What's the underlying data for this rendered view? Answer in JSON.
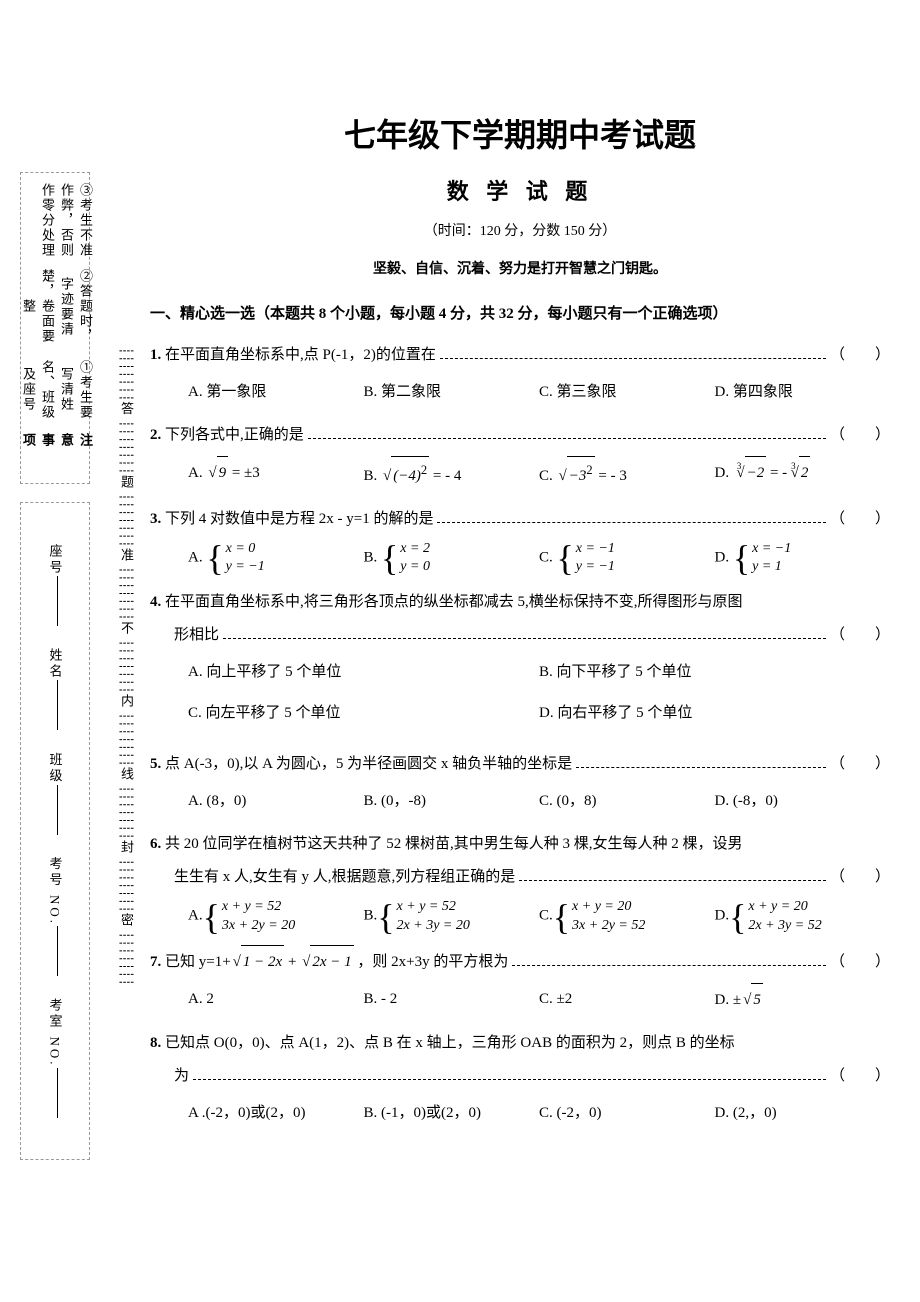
{
  "title": "七年级下学期期中考试题",
  "subtitle": "数 学 试 题",
  "meta": "（时间：120 分，分数 150 分）",
  "motto": "坚毅、自信、沉着、努力是打开智慧之门钥匙。",
  "sidebar": {
    "notice_header": "注 意 事 项",
    "notice_lines": [
      "①考生要写清姓名、班级及座号",
      "②答题时，字迹要清楚，卷面要整",
      "③考生不准作弊，否则作零分处理"
    ],
    "fill_labels": [
      "考室 NO.",
      "考号 NO.",
      "班级",
      "姓名",
      "座号"
    ],
    "strip_chars": [
      "答",
      "题",
      "准",
      "不",
      "内",
      "线",
      "封",
      "密"
    ]
  },
  "section1": {
    "head": "一、精心选一选（本题共 8 个小题，每小题 4 分，共 32 分，每小题只有一个正确选项）",
    "q1": {
      "num": "1.",
      "stem": "在平面直角坐标系中,点 P(-1，2)的位置在",
      "opts": [
        "A.  第一象限",
        "B.  第二象限",
        "C.  第三象限",
        "D.  第四象限"
      ]
    },
    "q2": {
      "num": "2.",
      "stem": "下列各式中,正确的是",
      "A_pre": "A.  ",
      "A_body": "9",
      "A_post": " = ±3",
      "B_pre": "B.  ",
      "B_body": "(−4)",
      "B_sup": "2",
      "B_post": " = - 4",
      "C_pre": "C.  ",
      "C_body": "−3",
      "C_sup": "2",
      "C_post": " = - 3",
      "D_pre": "D.  ",
      "D_idx": "3",
      "D_body1": "−2",
      "D_mid": " = -",
      "D_body2": "2"
    },
    "q3": {
      "num": "3.",
      "stem": "下列 4 对数值中是方程 2x - y=1 的解的是",
      "A_l": "A.  ",
      "A_r1": "x = 0",
      "A_r2": "y = −1",
      "B_l": "B.  ",
      "B_r1": "x = 2",
      "B_r2": "y = 0",
      "C_l": "C.  ",
      "C_r1": "x = −1",
      "C_r2": "y = −1",
      "D_l": "D.  ",
      "D_r1": "x = −1",
      "D_r2": "y = 1"
    },
    "q4": {
      "num": "4.",
      "stem1": "在平面直角坐标系中,将三角形各顶点的纵坐标都减去 5,横坐标保持不变,所得图形与原图",
      "stem2": "形相比",
      "opts": [
        "A. 向上平移了 5 个单位",
        "B. 向下平移了 5 个单位",
        "C. 向左平移了 5 个单位",
        "D. 向右平移了 5 个单位"
      ]
    },
    "q5": {
      "num": "5.",
      "stem": "点 A(-3，0),以 A 为圆心，5 为半径画圆交 x 轴负半轴的坐标是",
      "opts": [
        "A. (8，0)",
        "B. (0，-8)",
        "C. (0，8)",
        "D. (-8，0)"
      ]
    },
    "q6": {
      "num": "6.",
      "stem1": "共 20 位同学在植树节这天共种了 52 棵树苗,其中男生每人种 3 棵,女生每人种 2 棵，设男",
      "stem2": "生生有 x 人,女生有 y 人,根据题意,列方程组正确的是",
      "A_l": "A.",
      "A_r1": "x + y = 52",
      "A_r2": "3x + 2y = 20",
      "B_l": "B.",
      "B_r1": "x + y = 52",
      "B_r2": "2x + 3y = 20",
      "C_l": "C.",
      "C_r1": "x + y = 20",
      "C_r2": "3x + 2y = 52",
      "D_l": "D.",
      "D_r1": "x + y = 20",
      "D_r2": "2x + 3y = 52"
    },
    "q7": {
      "num": "7.",
      "stem_pre": "已知 y=1+",
      "sq1": "1 − 2x",
      "mid": " + ",
      "sq2": "2x − 1",
      "stem_post": " ，则 2x+3y 的平方根为",
      "opts": [
        "A. 2",
        "B. - 2",
        "C. ±2"
      ],
      "D_pre": "D. ±",
      "D_body": "5"
    },
    "q8": {
      "num": "8.",
      "stem1": "已知点 O(0，0)、点 A(1，2)、点 B 在 x 轴上，三角形 OAB 的面积为 2，则点 B 的坐标",
      "stem2": "为",
      "opts": [
        "A .(-2，0)或(2，0)",
        "B. (-1，0)或(2，0)",
        "C. (-2，0)",
        "D. (2,，0)"
      ]
    }
  }
}
